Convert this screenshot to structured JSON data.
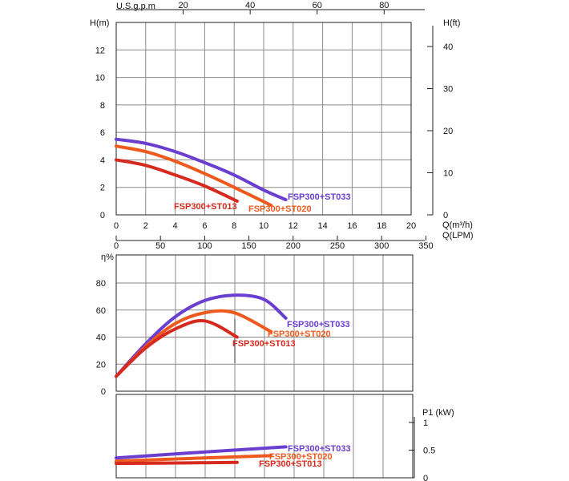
{
  "colors": {
    "ST033": "#6a3ecf",
    "ST020": "#ee5a1d",
    "ST013": "#d62a1e",
    "grid": "#8a8a8a",
    "axis": "#222222"
  },
  "chart_data": [
    {
      "type": "line",
      "ylabel": "H(m)",
      "ylabel_right": "H(ft)",
      "xlabel": "Q(m³/h)",
      "xlabel2": "Q(LPM)",
      "top_axis_label": "U.S.g.p.m",
      "xlim": [
        0,
        20
      ],
      "ylim": [
        0,
        14
      ],
      "xticks": [
        "0",
        "2",
        "4",
        "6",
        "8",
        "10",
        "12",
        "14",
        "16",
        "18",
        "20"
      ],
      "yticks": [
        "0",
        "2",
        "4",
        "6",
        "8",
        "10",
        "12"
      ],
      "right_ticks": [
        "0",
        "10",
        "20",
        "30",
        "40"
      ],
      "top_ticks": [
        "20",
        "40",
        "60",
        "80"
      ],
      "lpm_ticks": [
        "0",
        "50",
        "100",
        "150",
        "200",
        "250",
        "300",
        "350"
      ],
      "grid": true,
      "series": [
        {
          "name": "FSP300+ST033",
          "x": [
            0,
            2,
            4,
            6,
            8,
            10,
            11.5
          ],
          "y": [
            5.5,
            5.2,
            4.6,
            3.8,
            2.9,
            1.8,
            1.1
          ]
        },
        {
          "name": "FSP300+ST020",
          "x": [
            0,
            2,
            4,
            6,
            8,
            10.5
          ],
          "y": [
            5.0,
            4.6,
            3.9,
            3.0,
            2.0,
            0.7
          ]
        },
        {
          "name": "FSP300+ST013",
          "x": [
            0,
            2,
            4,
            6,
            8.2
          ],
          "y": [
            4.0,
            3.6,
            2.9,
            2.1,
            1.0
          ]
        }
      ]
    },
    {
      "type": "line",
      "ylabel": "η%",
      "ylim": [
        0,
        90
      ],
      "yticks": [
        "0",
        "20",
        "40",
        "60",
        "80"
      ],
      "grid": true,
      "series": [
        {
          "name": "FSP300+ST033",
          "x": [
            0,
            2,
            4,
            6,
            8,
            10,
            11.5
          ],
          "y": [
            11,
            35,
            55,
            67,
            71,
            68,
            54
          ]
        },
        {
          "name": "FSP300+ST020",
          "x": [
            0,
            2,
            4,
            6,
            8,
            10.5
          ],
          "y": [
            11,
            33,
            50,
            58,
            58,
            44
          ]
        },
        {
          "name": "FSP300+ST013",
          "x": [
            0,
            2,
            4,
            6,
            8.2
          ],
          "y": [
            11,
            32,
            46,
            52,
            40
          ]
        }
      ]
    },
    {
      "type": "line",
      "ylabel": "P1 (kW)",
      "ylim": [
        0,
        1.2
      ],
      "yticks": [
        "0",
        "0.5",
        "1"
      ],
      "grid": true,
      "series": [
        {
          "name": "FSP300+ST033",
          "x": [
            0,
            5,
            11.5
          ],
          "y": [
            0.36,
            0.45,
            0.56
          ]
        },
        {
          "name": "FSP300+ST020",
          "x": [
            0,
            5,
            10.5
          ],
          "y": [
            0.3,
            0.35,
            0.4
          ]
        },
        {
          "name": "FSP300+ST013",
          "x": [
            0,
            5,
            8.2
          ],
          "y": [
            0.26,
            0.27,
            0.28
          ]
        }
      ]
    }
  ]
}
